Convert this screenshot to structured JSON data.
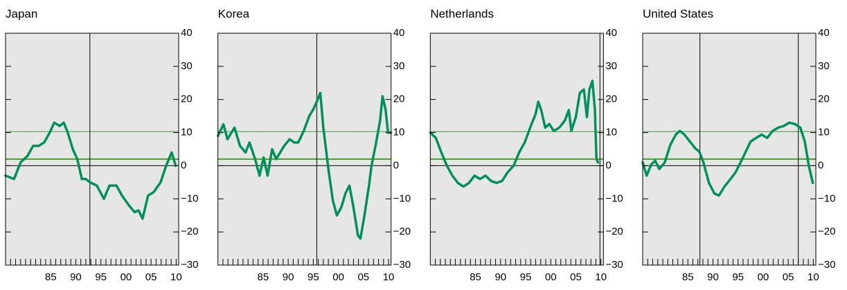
{
  "chart_data": [
    {
      "type": "line",
      "title": "Japan",
      "color": "#00915a",
      "x": [
        1976.0,
        1977.7,
        1979.0,
        1980.4,
        1981.5,
        1982.6,
        1983.7,
        1984.8,
        1985.7,
        1986.8,
        1987.6,
        1988.4,
        1989.4,
        1990.3,
        1991.2,
        1992.0,
        1992.8,
        1994.2,
        1995.6,
        1996.7,
        1998.1,
        1999.2,
        2000.6,
        2001.7,
        2002.5,
        2003.3,
        2004.4,
        2005.5,
        2006.9,
        2008.0,
        2009.1,
        2009.9
      ],
      "values": [
        -3,
        -4,
        1,
        3,
        6,
        6,
        7,
        10,
        13,
        12,
        13,
        10,
        5,
        2,
        -4,
        -4,
        -5,
        -6,
        -10,
        -6,
        -6,
        -9,
        -12,
        -14,
        -13.5,
        -16,
        -9,
        -8,
        -5,
        0,
        4,
        0
      ],
      "xlim": [
        1976,
        2010.5
      ],
      "ylim": [
        -30,
        40
      ],
      "xticks": [
        {
          "value": 1985,
          "label": "85"
        },
        {
          "value": 1990,
          "label": "90"
        },
        {
          "value": 1995,
          "label": "95"
        },
        {
          "value": 2000,
          "label": "00"
        },
        {
          "value": 2005,
          "label": "05"
        },
        {
          "value": 2010,
          "label": "10"
        }
      ],
      "xminorticks": [
        1977,
        1978,
        1979,
        1980,
        1981,
        1982,
        1983,
        1984,
        1985,
        1986,
        1987,
        1988,
        1989,
        1990,
        1991,
        1992,
        1993,
        1994,
        1995,
        1996,
        1997,
        1998,
        1999,
        2000,
        2001,
        2002,
        2003,
        2004,
        2005,
        2006,
        2007,
        2008,
        2009,
        2010
      ],
      "yticks": [
        {
          "value": -30,
          "label": "−30"
        },
        {
          "value": -20,
          "label": "−20"
        },
        {
          "value": -10,
          "label": "−10"
        },
        0,
        10,
        20,
        30,
        40
      ],
      "hlines": [
        {
          "value": 10.3,
          "color": "#3c9a3c",
          "width": 1
        },
        {
          "value": 2,
          "color": "#4aa02c",
          "width": 2
        },
        {
          "value": 0,
          "color": "#000",
          "width": 1
        }
      ],
      "vlines": [
        {
          "value": 1992.8,
          "color": "#000"
        }
      ]
    },
    {
      "type": "line",
      "title": "Korea",
      "color": "#00915a",
      "x": [
        1976.0,
        1977.1,
        1977.9,
        1979.3,
        1980.4,
        1981.5,
        1982.3,
        1983.4,
        1984.3,
        1985.1,
        1985.9,
        1986.8,
        1987.6,
        1988.4,
        1989.2,
        1990.3,
        1991.2,
        1992.0,
        1993.1,
        1994.2,
        1995.0,
        1995.6,
        1996.4,
        1997.0,
        1998.1,
        1998.9,
        1999.7,
        2000.6,
        2001.4,
        2002.2,
        2003.0,
        2003.9,
        2004.4,
        2005.2,
        2006.1,
        2006.6,
        2007.4,
        2008.3,
        2008.8,
        2009.4,
        2009.9,
        2010.5
      ],
      "values": [
        9,
        12.5,
        8,
        11.5,
        6,
        4,
        7,
        2,
        -3,
        2.5,
        -3,
        5,
        2,
        4,
        6,
        8,
        7,
        7,
        10.5,
        15,
        17,
        19,
        22,
        11.5,
        -2,
        -10.5,
        -15,
        -12.5,
        -8.4,
        -6,
        -12.5,
        -21,
        -22,
        -15,
        -6,
        0,
        6,
        13.5,
        21,
        17,
        10,
        10
      ],
      "xlim": [
        1976,
        2010.5
      ],
      "ylim": [
        -30,
        40
      ],
      "xticks": [
        {
          "value": 1985,
          "label": "85"
        },
        {
          "value": 1990,
          "label": "90"
        },
        {
          "value": 1995,
          "label": "95"
        },
        {
          "value": 2000,
          "label": "00"
        },
        {
          "value": 2005,
          "label": "05"
        },
        {
          "value": 2010,
          "label": "10"
        }
      ],
      "xminorticks": [
        1977,
        1978,
        1979,
        1980,
        1981,
        1982,
        1983,
        1984,
        1985,
        1986,
        1987,
        1988,
        1989,
        1990,
        1991,
        1992,
        1993,
        1994,
        1995,
        1996,
        1997,
        1998,
        1999,
        2000,
        2001,
        2002,
        2003,
        2004,
        2005,
        2006,
        2007,
        2008,
        2009,
        2010
      ],
      "yticks": [
        {
          "value": -30,
          "label": "−30"
        },
        {
          "value": -20,
          "label": "−20"
        },
        {
          "value": -10,
          "label": "−10"
        },
        0,
        10,
        20,
        30,
        40
      ],
      "hlines": [
        {
          "value": 10.3,
          "color": "#3c9a3c",
          "width": 1
        },
        {
          "value": 2,
          "color": "#4aa02c",
          "width": 2
        },
        {
          "value": 0,
          "color": "#000",
          "width": 1
        }
      ],
      "vlines": [
        {
          "value": 1995.7,
          "color": "#000"
        }
      ]
    },
    {
      "type": "line",
      "title": "Netherlands",
      "color": "#00915a",
      "x": [
        1976.0,
        1977.1,
        1978.2,
        1979.3,
        1980.4,
        1981.5,
        1982.6,
        1983.7,
        1984.8,
        1985.9,
        1987.0,
        1988.1,
        1989.2,
        1990.3,
        1991.4,
        1992.6,
        1993.7,
        1994.8,
        1995.9,
        1997.0,
        1997.5,
        1998.1,
        1998.9,
        1999.7,
        2000.6,
        2001.7,
        2002.8,
        2003.6,
        2004.1,
        2005.0,
        2005.8,
        2006.6,
        2007.2,
        2007.7,
        2008.3,
        2008.8,
        2009.1,
        2009.4
      ],
      "values": [
        10,
        8.4,
        4,
        0,
        -3,
        -5.2,
        -6.3,
        -5.2,
        -3,
        -4,
        -3,
        -4.6,
        -5.2,
        -4.6,
        -2,
        0,
        4,
        7,
        11.5,
        15.7,
        19.3,
        16.8,
        11.5,
        12.6,
        10.5,
        11.5,
        13.6,
        16.8,
        10.5,
        14.7,
        22,
        23,
        14.7,
        23,
        25.6,
        16.8,
        2,
        1
      ],
      "xlim": [
        1976,
        2010.5
      ],
      "ylim": [
        -30,
        40
      ],
      "xticks": [
        {
          "value": 1985,
          "label": "85"
        },
        {
          "value": 1990,
          "label": "90"
        },
        {
          "value": 1995,
          "label": "95"
        },
        {
          "value": 2000,
          "label": "00"
        },
        {
          "value": 2005,
          "label": "05"
        },
        {
          "value": 2010,
          "label": "10"
        }
      ],
      "xminorticks": [
        1977,
        1978,
        1979,
        1980,
        1981,
        1982,
        1983,
        1984,
        1985,
        1986,
        1987,
        1988,
        1989,
        1990,
        1991,
        1992,
        1993,
        1994,
        1995,
        1996,
        1997,
        1998,
        1999,
        2000,
        2001,
        2002,
        2003,
        2004,
        2005,
        2006,
        2007,
        2008,
        2009,
        2010
      ],
      "yticks": [
        {
          "value": -30,
          "label": "−30"
        },
        {
          "value": -20,
          "label": "−20"
        },
        {
          "value": -10,
          "label": "−10"
        },
        0,
        10,
        20,
        30,
        40
      ],
      "hlines": [
        {
          "value": 10.3,
          "color": "#3c9a3c",
          "width": 1
        },
        {
          "value": 2,
          "color": "#4aa02c",
          "width": 2
        },
        {
          "value": 0,
          "color": "#000",
          "width": 1
        }
      ],
      "vlines": [
        {
          "value": 2009.8,
          "color": "#000"
        }
      ]
    },
    {
      "type": "line",
      "title": "United States",
      "color": "#00915a",
      "x": [
        1976.0,
        1976.8,
        1977.7,
        1978.5,
        1979.3,
        1980.4,
        1981.5,
        1982.6,
        1983.4,
        1984.3,
        1985.4,
        1986.5,
        1987.3,
        1988.1,
        1989.2,
        1990.3,
        1991.2,
        1992.3,
        1993.4,
        1994.5,
        1995.3,
        1996.4,
        1997.5,
        1998.6,
        1999.7,
        2000.8,
        2001.9,
        2003.0,
        2004.1,
        2005.2,
        2006.3,
        2007.4,
        2008.3,
        2009.1,
        2009.9
      ],
      "values": [
        1,
        -3,
        0.4,
        1.5,
        -1,
        1,
        6.3,
        9.4,
        10.5,
        9.4,
        7.3,
        5.2,
        4.2,
        1,
        -5.2,
        -8.4,
        -9,
        -6.3,
        -4.2,
        -2,
        0.4,
        3.8,
        7.3,
        8.4,
        9.4,
        8.4,
        10.5,
        11.5,
        12,
        13,
        12.6,
        11.5,
        7.3,
        0,
        -5.2
      ],
      "xlim": [
        1976,
        2010.5
      ],
      "ylim": [
        -30,
        40
      ],
      "xticks": [
        {
          "value": 1985,
          "label": "85"
        },
        {
          "value": 1990,
          "label": "90"
        },
        {
          "value": 1995,
          "label": "95"
        },
        {
          "value": 2000,
          "label": "00"
        },
        {
          "value": 2005,
          "label": "05"
        },
        {
          "value": 2010,
          "label": "10"
        }
      ],
      "xminorticks": [
        1977,
        1978,
        1979,
        1980,
        1981,
        1982,
        1983,
        1984,
        1985,
        1986,
        1987,
        1988,
        1989,
        1990,
        1991,
        1992,
        1993,
        1994,
        1995,
        1996,
        1997,
        1998,
        1999,
        2000,
        2001,
        2002,
        2003,
        2004,
        2005,
        2006,
        2007,
        2008,
        2009,
        2010
      ],
      "yticks": [
        {
          "value": -30,
          "label": "−30"
        },
        {
          "value": -20,
          "label": "−20"
        },
        {
          "value": -10,
          "label": "−10"
        },
        0,
        10,
        20,
        30,
        40
      ],
      "hlines": [
        {
          "value": 10.3,
          "color": "#3c9a3c",
          "width": 1
        },
        {
          "value": 2,
          "color": "#4aa02c",
          "width": 2
        },
        {
          "value": 0,
          "color": "#000",
          "width": 1
        }
      ],
      "vlines": [
        {
          "value": 1987.4,
          "color": "#000"
        },
        {
          "value": 2007.0,
          "color": "#000"
        }
      ]
    }
  ]
}
